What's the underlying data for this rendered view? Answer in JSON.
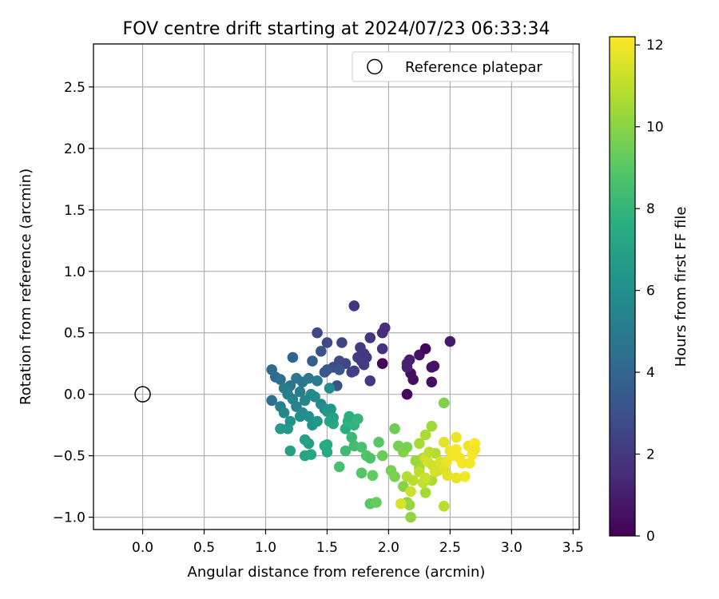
{
  "chart_data": {
    "type": "scatter",
    "title": "FOV centre drift starting at 2024/07/23 06:33:34",
    "xlabel": "Angular distance from reference (arcmin)",
    "ylabel": "Rotation from reference (arcmin)",
    "xlim": [
      -0.4,
      3.55
    ],
    "ylim": [
      -1.1,
      2.85
    ],
    "xticks": [
      0.0,
      0.5,
      1.0,
      1.5,
      2.0,
      2.5,
      3.0,
      3.5
    ],
    "xtick_labels": [
      "0.0",
      "0.5",
      "1.0",
      "1.5",
      "2.0",
      "2.5",
      "3.0",
      "3.5"
    ],
    "yticks": [
      -1.0,
      -0.5,
      0.0,
      0.5,
      1.0,
      1.5,
      2.0,
      2.5
    ],
    "ytick_labels": [
      "−1.0",
      "−0.5",
      "0.0",
      "0.5",
      "1.0",
      "1.5",
      "2.0",
      "2.5"
    ],
    "grid": true,
    "legend": {
      "placement": "top-right",
      "entries": [
        {
          "label": "Reference platepar",
          "marker": "open-circle"
        }
      ]
    },
    "reference_point": {
      "x": 0.0,
      "y": 0.0
    },
    "colorbar": {
      "label": "Hours from first FF file",
      "range": [
        0,
        12.2
      ],
      "ticks": [
        0,
        2,
        4,
        6,
        8,
        10,
        12
      ],
      "tick_labels": [
        "0",
        "2",
        "4",
        "6",
        "8",
        "10",
        "12"
      ],
      "colormap": "viridis"
    },
    "points": [
      [
        1.95,
        0.25,
        0.1
      ],
      [
        2.15,
        0.0,
        0.3
      ],
      [
        2.18,
        0.17,
        0.4
      ],
      [
        2.2,
        0.12,
        0.5
      ],
      [
        2.25,
        0.32,
        0.6
      ],
      [
        2.3,
        0.37,
        0.2
      ],
      [
        2.35,
        0.1,
        0.5
      ],
      [
        2.37,
        0.23,
        0.7
      ],
      [
        2.35,
        0.22,
        0.6
      ],
      [
        2.5,
        0.43,
        0.9
      ],
      [
        2.17,
        0.28,
        1.0
      ],
      [
        2.15,
        0.22,
        1.2
      ],
      [
        2.15,
        0.25,
        1.1
      ],
      [
        1.72,
        0.72,
        1.8
      ],
      [
        1.97,
        0.54,
        1.6
      ],
      [
        1.95,
        0.5,
        1.5
      ],
      [
        1.95,
        0.37,
        1.7
      ],
      [
        1.85,
        0.46,
        1.9
      ],
      [
        1.77,
        0.38,
        2.1
      ],
      [
        1.8,
        0.33,
        2.0
      ],
      [
        1.75,
        0.3,
        2.2
      ],
      [
        1.82,
        0.3,
        1.9
      ],
      [
        1.85,
        0.11,
        2.1
      ],
      [
        1.7,
        0.18,
        2.4
      ],
      [
        1.72,
        0.19,
        2.3
      ],
      [
        1.8,
        0.24,
        2.2
      ],
      [
        1.78,
        0.27,
        2.1
      ],
      [
        1.62,
        0.42,
        2.5
      ],
      [
        1.5,
        0.42,
        2.8
      ],
      [
        1.42,
        0.5,
        2.7
      ],
      [
        1.65,
        0.25,
        2.6
      ],
      [
        1.55,
        0.22,
        2.9
      ],
      [
        1.6,
        0.27,
        2.8
      ],
      [
        1.58,
        0.07,
        3.0
      ],
      [
        1.45,
        0.35,
        3.2
      ],
      [
        1.5,
        0.2,
        3.3
      ],
      [
        1.48,
        0.18,
        3.4
      ],
      [
        1.6,
        0.2,
        3.1
      ],
      [
        1.38,
        0.27,
        3.7
      ],
      [
        1.22,
        0.3,
        3.9
      ],
      [
        1.05,
        0.2,
        4.2
      ],
      [
        1.08,
        0.14,
        4.3
      ],
      [
        1.12,
        0.12,
        4.4
      ],
      [
        1.2,
        0.07,
        4.6
      ],
      [
        1.25,
        0.13,
        4.8
      ],
      [
        1.3,
        0.1,
        4.7
      ],
      [
        1.35,
        0.13,
        4.9
      ],
      [
        1.42,
        0.11,
        5.0
      ],
      [
        1.28,
        0.02,
        5.2
      ],
      [
        1.22,
        -0.04,
        5.4
      ],
      [
        1.18,
        0.0,
        5.3
      ],
      [
        1.15,
        0.05,
        5.1
      ],
      [
        1.32,
        -0.05,
        5.5
      ],
      [
        1.37,
        0.0,
        5.6
      ],
      [
        1.4,
        -0.02,
        5.8
      ],
      [
        1.45,
        -0.08,
        5.7
      ],
      [
        1.52,
        0.05,
        5.9
      ],
      [
        1.48,
        -0.12,
        6.0
      ],
      [
        1.05,
        -0.05,
        4.5
      ],
      [
        1.12,
        -0.1,
        5.2
      ],
      [
        1.15,
        -0.15,
        5.6
      ],
      [
        1.25,
        -0.1,
        5.4
      ],
      [
        1.3,
        -0.15,
        5.8
      ],
      [
        1.35,
        -0.18,
        6.1
      ],
      [
        1.2,
        -0.22,
        6.2
      ],
      [
        1.38,
        -0.25,
        6.3
      ],
      [
        1.42,
        -0.22,
        6.4
      ],
      [
        1.5,
        -0.14,
        6.5
      ],
      [
        1.53,
        -0.12,
        6.3
      ],
      [
        1.12,
        -0.28,
        6.6
      ],
      [
        1.18,
        -0.28,
        6.5
      ],
      [
        1.28,
        -0.18,
        6.0
      ],
      [
        1.35,
        -0.4,
        6.8
      ],
      [
        1.32,
        -0.37,
        7.0
      ],
      [
        1.2,
        -0.46,
        6.9
      ],
      [
        1.32,
        -0.5,
        7.1
      ],
      [
        1.37,
        -0.49,
        7.2
      ],
      [
        1.48,
        -0.42,
        7.3
      ],
      [
        1.5,
        -0.47,
        7.4
      ],
      [
        1.52,
        -0.22,
        7.1
      ],
      [
        1.55,
        -0.24,
        7.2
      ],
      [
        1.55,
        -0.19,
        7.0
      ],
      [
        1.5,
        -0.41,
        7.5
      ],
      [
        1.65,
        -0.28,
        7.6
      ],
      [
        1.67,
        -0.22,
        7.8
      ],
      [
        1.68,
        -0.18,
        7.7
      ],
      [
        1.72,
        -0.25,
        7.9
      ],
      [
        1.75,
        -0.2,
        8.0
      ],
      [
        1.7,
        -0.35,
        8.2
      ],
      [
        1.72,
        -0.42,
        8.4
      ],
      [
        1.65,
        -0.46,
        8.3
      ],
      [
        1.6,
        -0.59,
        8.5
      ],
      [
        1.78,
        -0.43,
        8.6
      ],
      [
        1.82,
        -0.5,
        8.8
      ],
      [
        1.85,
        -0.52,
        8.7
      ],
      [
        1.78,
        -0.64,
        8.9
      ],
      [
        1.85,
        -0.89,
        9.1
      ],
      [
        1.9,
        -0.88,
        9.3
      ],
      [
        1.87,
        -0.66,
        9.2
      ],
      [
        1.92,
        -0.39,
        9.0
      ],
      [
        1.95,
        -0.5,
        9.4
      ],
      [
        2.05,
        -0.28,
        9.5
      ],
      [
        2.08,
        -0.42,
        9.6
      ],
      [
        2.12,
        -0.47,
        9.8
      ],
      [
        2.15,
        -0.43,
        9.7
      ],
      [
        2.02,
        -0.62,
        9.6
      ],
      [
        2.05,
        -0.67,
        9.7
      ],
      [
        2.12,
        -0.75,
        9.9
      ],
      [
        2.15,
        -0.88,
        10.0
      ],
      [
        2.18,
        -1.0,
        10.1
      ],
      [
        2.17,
        -0.9,
        10.2
      ],
      [
        2.22,
        -0.54,
        10.3
      ],
      [
        2.25,
        -0.6,
        10.4
      ],
      [
        2.28,
        -0.52,
        10.5
      ],
      [
        2.3,
        -0.33,
        10.6
      ],
      [
        2.35,
        -0.26,
        10.4
      ],
      [
        2.38,
        -0.48,
        10.7
      ],
      [
        2.4,
        -0.62,
        10.8
      ],
      [
        2.35,
        -0.7,
        10.6
      ],
      [
        2.3,
        -0.8,
        10.5
      ],
      [
        2.45,
        -0.07,
        9.8
      ],
      [
        2.45,
        -0.91,
        10.9
      ],
      [
        2.2,
        -0.7,
        10.9
      ],
      [
        2.25,
        -0.63,
        11.0
      ],
      [
        2.28,
        -0.72,
        11.1
      ],
      [
        2.3,
        -0.68,
        11.2
      ],
      [
        2.3,
        -0.52,
        11.3
      ],
      [
        2.32,
        -0.55,
        11.4
      ],
      [
        2.36,
        -0.58,
        11.3
      ],
      [
        2.42,
        -0.55,
        11.5
      ],
      [
        2.45,
        -0.61,
        11.6
      ],
      [
        2.47,
        -0.55,
        11.8
      ],
      [
        2.45,
        -0.39,
        11.7
      ],
      [
        2.5,
        -0.46,
        11.9
      ],
      [
        2.52,
        -0.5,
        12.0
      ],
      [
        2.55,
        -0.45,
        12.1
      ],
      [
        2.55,
        -0.35,
        11.9
      ],
      [
        2.58,
        -0.52,
        12.0
      ],
      [
        2.6,
        -0.56,
        12.1
      ],
      [
        2.62,
        -0.67,
        12.0
      ],
      [
        2.65,
        -0.42,
        11.9
      ],
      [
        2.66,
        -0.56,
        12.0
      ],
      [
        2.68,
        -0.49,
        12.1
      ],
      [
        2.7,
        -0.4,
        12.2
      ],
      [
        2.7,
        -0.45,
        12.0
      ],
      [
        2.55,
        -0.68,
        11.8
      ],
      [
        2.1,
        -0.89,
        11.5
      ],
      [
        2.18,
        -0.79,
        11.2
      ],
      [
        2.15,
        -0.67,
        10.8
      ],
      [
        2.25,
        -0.4,
        10.6
      ],
      [
        2.33,
        -0.47,
        11.0
      ],
      [
        2.38,
        -0.63,
        11.4
      ],
      [
        2.48,
        -0.66,
        11.7
      ]
    ]
  }
}
